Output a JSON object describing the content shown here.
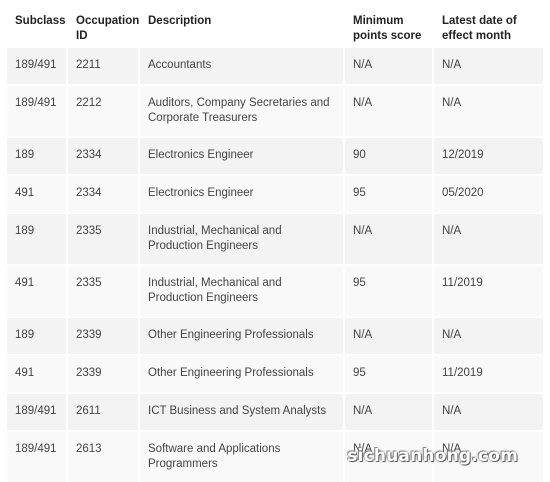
{
  "table": {
    "headers": [
      "Subclass",
      "Occupation ID",
      "Description",
      "Minimum points score",
      "Latest date of effect month"
    ],
    "rows": [
      [
        "189/491",
        "2211",
        "Accountants",
        "N/A",
        "N/A"
      ],
      [
        "189/491",
        "2212",
        "Auditors, Company Secretaries and Corporate Treasurers",
        "N/A",
        "N/A"
      ],
      [
        "189",
        "2334",
        "Electronics Engineer",
        "90",
        "12/2019"
      ],
      [
        "491",
        "2334",
        "Electronics Engineer",
        "95",
        "05/2020"
      ],
      [
        "189",
        "2335",
        "Industrial, Mechanical and Production Engineers",
        "N/A",
        "N/A"
      ],
      [
        "491",
        "2335",
        "Industrial, Mechanical and Production Engineers",
        "95",
        "11/2019"
      ],
      [
        "189",
        "2339",
        "Other Engineering Professionals",
        "N/A",
        "N/A"
      ],
      [
        "491",
        "2339",
        "Other Engineering Professionals",
        "95",
        "11/2019"
      ],
      [
        "189/491",
        "2611",
        "ICT Business and System Analysts",
        "N/A",
        "N/A"
      ],
      [
        "189/491",
        "2613",
        "Software and Applications Programmers",
        "N/A",
        "N/A"
      ]
    ]
  },
  "watermark": "sichuanhong.com"
}
